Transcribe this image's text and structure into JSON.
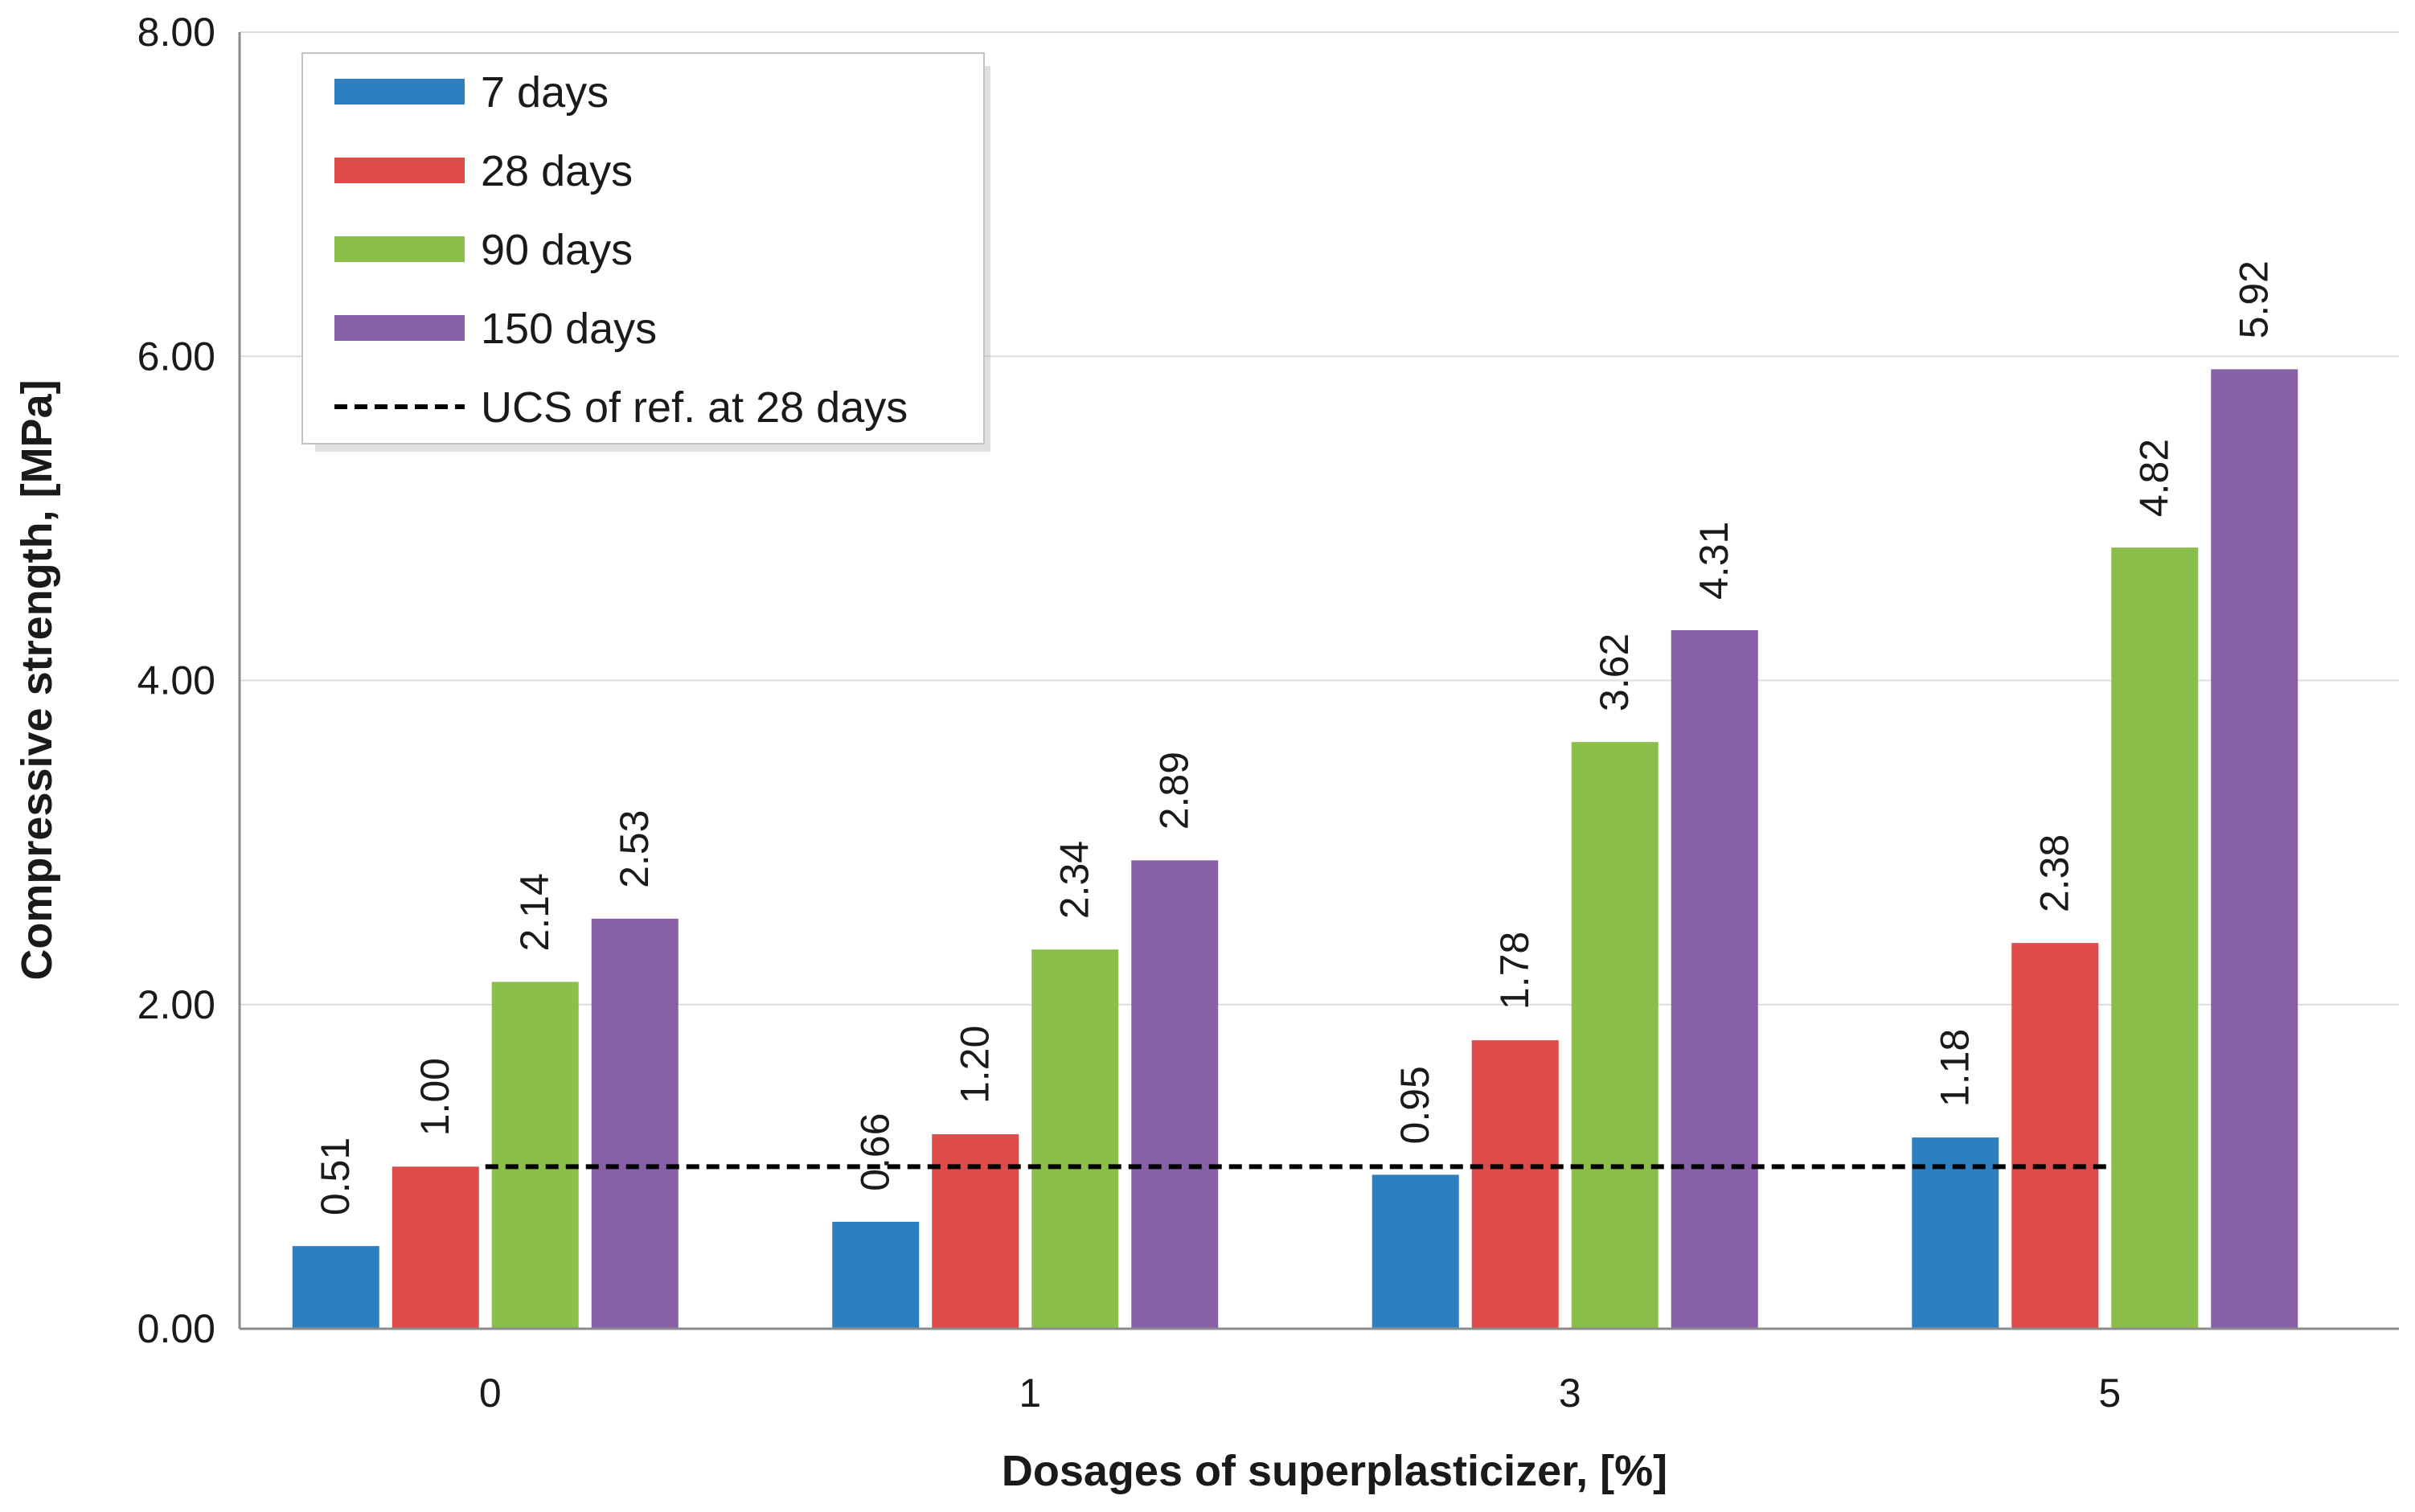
{
  "chart_data": {
    "type": "bar",
    "title": "",
    "xlabel": "Dosages of superplasticizer, [%]",
    "ylabel": "Compressive strength, [MPa]",
    "ylim": [
      0,
      8
    ],
    "yticks": [
      "0.00",
      "2.00",
      "4.00",
      "6.00",
      "8.00"
    ],
    "categories": [
      "0",
      "1",
      "3",
      "5"
    ],
    "series": [
      {
        "name": "7 days",
        "color": "#2e7fc2",
        "values": [
          0.51,
          0.66,
          0.95,
          1.18
        ],
        "labels": [
          "0.51",
          "0.66",
          "0.95",
          "1.18"
        ]
      },
      {
        "name": "28 days",
        "color": "#de4b4b",
        "values": [
          1.0,
          1.2,
          1.78,
          2.38
        ],
        "labels": [
          "1.00",
          "1.20",
          "1.78",
          "2.38"
        ]
      },
      {
        "name": "90 days",
        "color": "#8cbf4a",
        "values": [
          2.14,
          2.34,
          3.62,
          4.82
        ],
        "labels": [
          "2.14",
          "2.34",
          "3.62",
          "4.82"
        ]
      },
      {
        "name": "150 days",
        "color": "#8760a8",
        "values": [
          2.53,
          2.89,
          4.31,
          5.92
        ],
        "labels": [
          "2.53",
          "2.89",
          "4.31",
          "5.92"
        ]
      }
    ],
    "reference_line": {
      "name": "UCS of ref. at 28 days",
      "value": 1.0,
      "style": "dashed",
      "color": "#000000"
    },
    "grid": true,
    "legend_position": "top-left"
  }
}
